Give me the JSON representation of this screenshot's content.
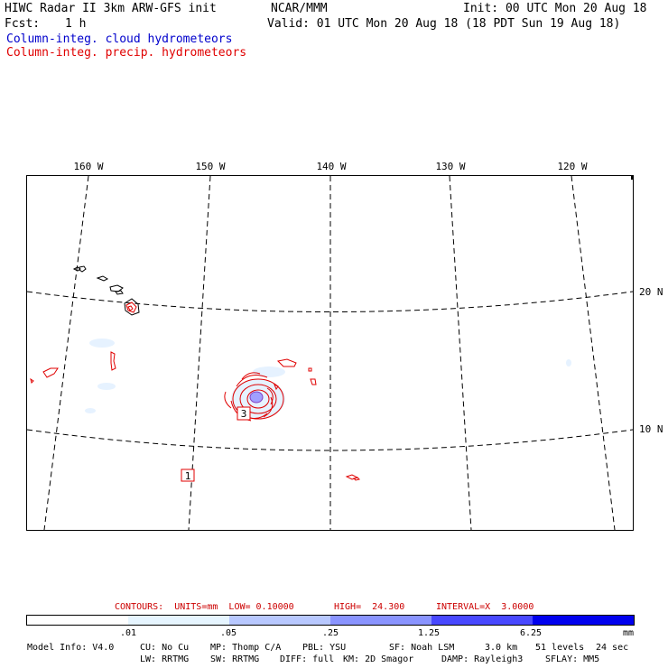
{
  "header": {
    "title": "HIWC Radar II 3km ARW-GFS init",
    "org": "NCAR/MMM",
    "init": "Init: 00 UTC Mon 20 Aug 18",
    "fcst_label": "Fcst:",
    "fcst_value": "1 h",
    "valid": "Valid: 01 UTC Mon 20 Aug 18 (18 PDT Sun 19 Aug 18)",
    "legend_cloud": "Column-integ. cloud hydrometeors",
    "legend_precip": "Column-integ. precip. hydrometeors",
    "legend_cloud_color": "#0000cc",
    "legend_precip_color": "#e00000"
  },
  "map": {
    "lon_labels": [
      "160 W",
      "150 W",
      "140 W",
      "130 W",
      "120 W"
    ],
    "lat_labels": [
      "20 N",
      "10 N"
    ],
    "annotations": [
      "3",
      "1"
    ],
    "coast_color": "#000000",
    "precip_color": "#e00000",
    "cloud_fill_color": "#e6f2ff"
  },
  "contours": {
    "text_units": "CONTOURS:  UNITS=mm  LOW= 0.10000",
    "text_high": "HIGH=  24.300",
    "text_interval": "INTERVAL=X  3.0000",
    "color": "#cc0000"
  },
  "colorbar": {
    "ticks": [
      ".01",
      ".05",
      ".25",
      "1.25",
      "6.25"
    ],
    "unit": "mm",
    "colors": [
      "#ffffff",
      "#e6f5ff",
      "#b8c8ff",
      "#8a94ff",
      "#4848ff",
      "#0000ee"
    ]
  },
  "footer": {
    "line1": [
      "Model Info: V4.0",
      "CU: No Cu",
      "MP: Thomp C/A",
      "PBL: YSU",
      "SF: Noah LSM",
      "3.0 km",
      "51 levels",
      "24 sec"
    ],
    "line2": [
      "LW: RRTMG",
      "SW: RRTMG",
      "DIFF: full",
      "KM: 2D Smagor",
      "DAMP: Rayleigh3",
      "SFLAY: MM5"
    ]
  }
}
